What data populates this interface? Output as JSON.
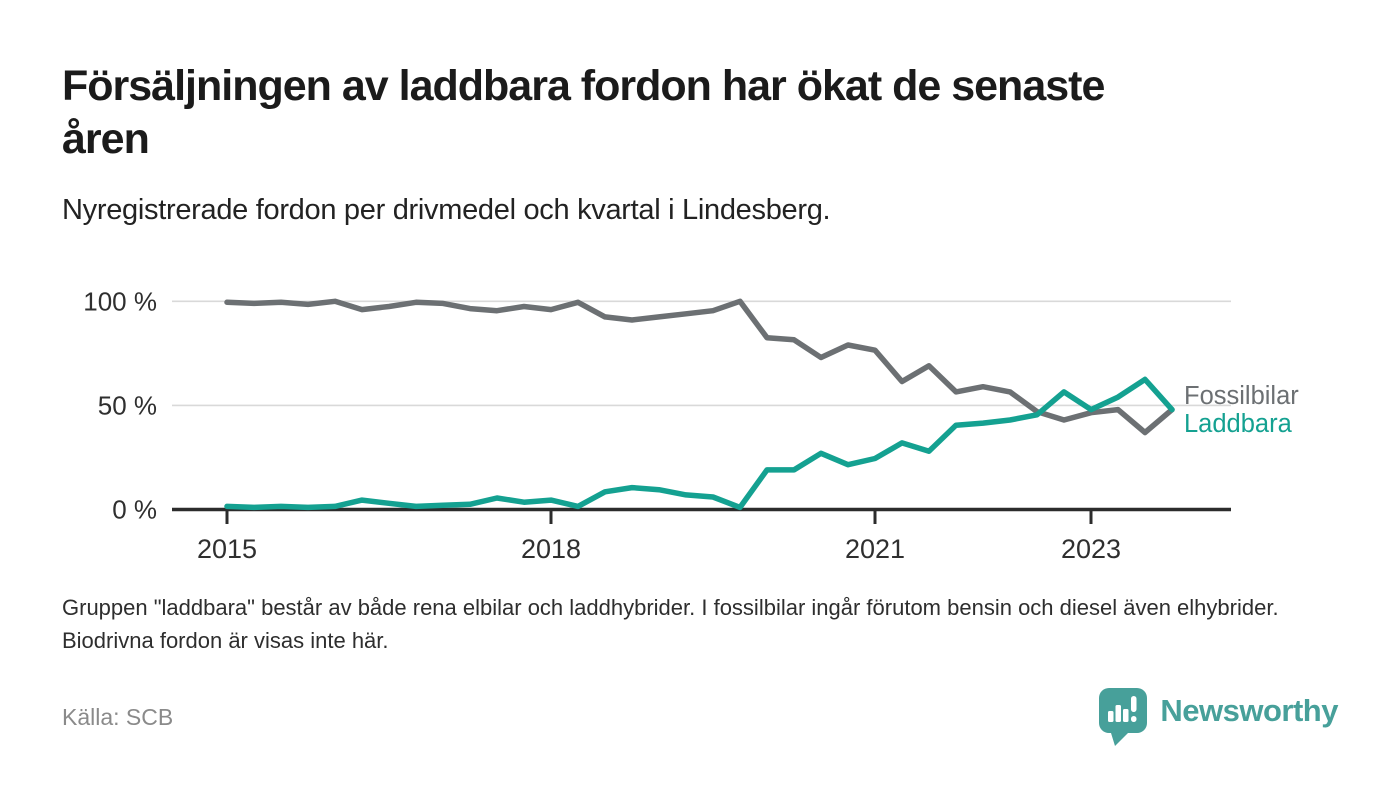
{
  "header": {
    "title_lines": [
      "Försäljningen av laddbara fordon har ökat de senaste",
      "åren"
    ]
  },
  "chart_data": {
    "type": "line",
    "title": "Försäljningen av laddbara fordon har ökat de senaste åren",
    "subtitle": "Nyregistrerade fordon per drivmedel och kvartal i Lindesberg.",
    "x_unit": "quarter",
    "x": [
      "2015-Q1",
      "2015-Q2",
      "2015-Q3",
      "2015-Q4",
      "2016-Q1",
      "2016-Q2",
      "2016-Q3",
      "2016-Q4",
      "2017-Q1",
      "2017-Q2",
      "2017-Q3",
      "2017-Q4",
      "2018-Q1",
      "2018-Q2",
      "2018-Q3",
      "2018-Q4",
      "2019-Q1",
      "2019-Q2",
      "2019-Q3",
      "2019-Q4",
      "2020-Q1",
      "2020-Q2",
      "2020-Q3",
      "2020-Q4",
      "2021-Q1",
      "2021-Q2",
      "2021-Q3",
      "2021-Q4",
      "2022-Q1",
      "2022-Q2",
      "2022-Q3",
      "2022-Q4",
      "2023-Q1",
      "2023-Q2",
      "2023-Q3",
      "2023-Q4"
    ],
    "series": [
      {
        "name": "Fossilbilar",
        "color": "#6c7073",
        "values": [
          99.5,
          99,
          99.5,
          98.5,
          100,
          96,
          97.5,
          99.5,
          99,
          96.5,
          95.5,
          97.5,
          96,
          99.5,
          92.5,
          91,
          92.5,
          94,
          95.5,
          100,
          82.5,
          81.5,
          73,
          79,
          76.5,
          61.5,
          69,
          56.5,
          59,
          56.5,
          47,
          43,
          46.5,
          48,
          37,
          48
        ]
      },
      {
        "name": "Laddbara",
        "color": "#14a191",
        "values": [
          1.5,
          1,
          1.5,
          1,
          1.5,
          4.5,
          3,
          1.5,
          2,
          2.5,
          5.5,
          3.5,
          4.5,
          1.5,
          8.5,
          10.5,
          9.5,
          7,
          6,
          1,
          19,
          19,
          27,
          21.5,
          24.5,
          32,
          28,
          40.5,
          41.5,
          43,
          45.5,
          56.5,
          48,
          54,
          62.5,
          48
        ]
      }
    ],
    "ylim": [
      0,
      100
    ],
    "y_ticks": [
      {
        "label": "0 %",
        "value": 0
      },
      {
        "label": "50 %",
        "value": 50
      },
      {
        "label": "100 %",
        "value": 100
      }
    ],
    "x_ticks": [
      {
        "label": "2015",
        "quarter_index": 0
      },
      {
        "label": "2018",
        "quarter_index": 12
      },
      {
        "label": "2021",
        "quarter_index": 24
      },
      {
        "label": "2023",
        "quarter_index": 32
      }
    ],
    "grid": "horizontal",
    "legend_position": "right-of-line-ends",
    "colors": {
      "grid": "#d9d9d9",
      "axis": "#2c2c2c",
      "tick_label": "#2f2f2f"
    }
  },
  "footer": {
    "note": "Gruppen \"laddbara\" består av både rena elbilar och laddhybrider. I fossilbilar ingår förutom bensin och diesel även elhybrider. Biodrivna fordon är visas inte här.",
    "source": "Källa: SCB"
  },
  "branding": {
    "name": "Newsworthy",
    "color": "#47a09a"
  }
}
